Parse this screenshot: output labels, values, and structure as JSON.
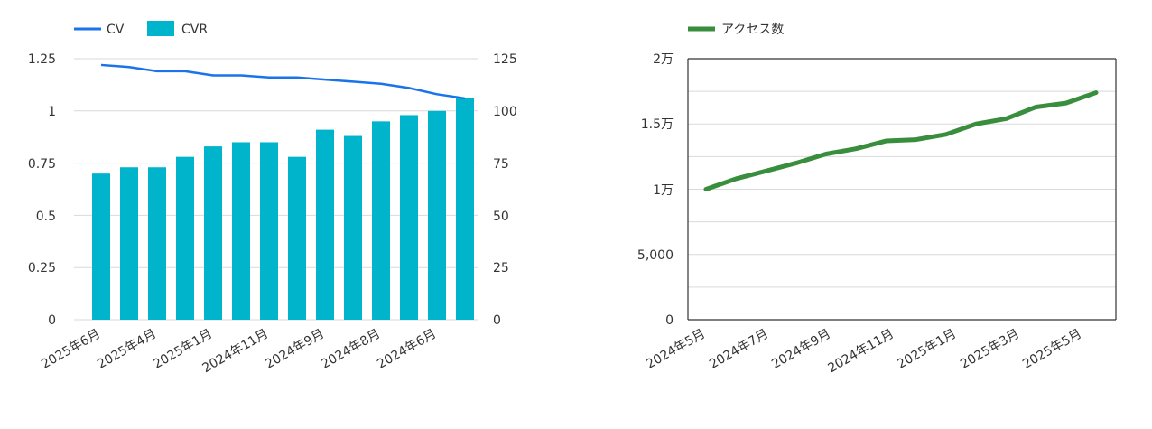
{
  "chart_data": [
    {
      "type": "bar+line",
      "title": "",
      "legend": {
        "position": "top-left",
        "items": [
          {
            "name": "CV",
            "kind": "line",
            "color": "#1a73e8"
          },
          {
            "name": "CVR",
            "kind": "bar",
            "color": "#00b4cc"
          }
        ]
      },
      "x_tick_labels": [
        "2025年6月",
        "2025年4月",
        "2025年1月",
        "2024年11月",
        "2024年9月",
        "2024年8月",
        "2024年6月"
      ],
      "left_axis": {
        "ticks": [
          "0",
          "0.25",
          "0.5",
          "0.75",
          "1",
          "1.25"
        ],
        "range": [
          0,
          1.25
        ]
      },
      "right_axis": {
        "ticks": [
          "0",
          "25",
          "50",
          "75",
          "100",
          "125"
        ],
        "range": [
          0,
          125
        ]
      },
      "series": [
        {
          "name": "CVR",
          "type": "bar",
          "axis": "right",
          "color": "#00b4cc",
          "values": [
            70,
            73,
            73,
            78,
            83,
            85,
            85,
            78,
            91,
            88,
            95,
            98,
            100,
            106
          ]
        },
        {
          "name": "CV",
          "type": "line",
          "axis": "left",
          "color": "#1a73e8",
          "values": [
            1.22,
            1.21,
            1.19,
            1.19,
            1.17,
            1.17,
            1.16,
            1.16,
            1.15,
            1.14,
            1.13,
            1.11,
            1.08,
            1.06
          ]
        }
      ],
      "grid": true
    },
    {
      "type": "line",
      "title": "",
      "legend": {
        "position": "top-left",
        "items": [
          {
            "name": "アクセス数",
            "kind": "line",
            "color": "#388e3c"
          }
        ]
      },
      "x_tick_labels": [
        "2024年5月",
        "2024年7月",
        "2024年9月",
        "2024年11月",
        "2025年1月",
        "2025年3月",
        "2025年5月"
      ],
      "y_axis": {
        "ticks": [
          "0",
          "5,000",
          "1万",
          "1.5万",
          "2万"
        ],
        "range": [
          0,
          20000
        ]
      },
      "series": [
        {
          "name": "アクセス数",
          "color": "#388e3c",
          "values": [
            10000,
            10800,
            11400,
            12000,
            12700,
            13100,
            13700,
            13800,
            14200,
            15000,
            15400,
            16300,
            16600,
            17400
          ]
        }
      ],
      "grid": true
    }
  ]
}
